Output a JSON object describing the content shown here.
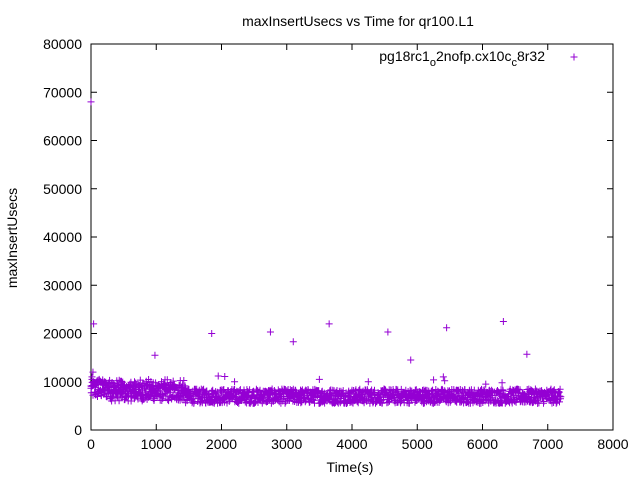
{
  "chart_data": {
    "type": "scatter",
    "title": "maxInsertUsecs vs Time for qr100.L1",
    "xlabel": "Time(s)",
    "ylabel": "maxInsertUsecs",
    "xlim": [
      0,
      8000
    ],
    "ylim": [
      0,
      80000
    ],
    "xticks": [
      "0",
      "1000",
      "2000",
      "3000",
      "4000",
      "5000",
      "6000",
      "7000",
      "8000"
    ],
    "yticks": [
      "0",
      "10000",
      "20000",
      "30000",
      "40000",
      "50000",
      "60000",
      "70000",
      "80000"
    ],
    "legend_position": "top-right",
    "marker": "+",
    "color": "#9400d3",
    "series": [
      {
        "name": "pg18rc1_o2nofp.cx10c_c8r32",
        "band": {
          "x_range": [
            0,
            7200
          ],
          "y_range": [
            5500,
            8500
          ],
          "density": "dense, one point per ~5 seconds",
          "upper_fringe_y": [
            8500,
            10500
          ],
          "upper_fringe_x_range": [
            0,
            1450
          ]
        },
        "points": [
          {
            "x": 0,
            "y": 68000
          },
          {
            "x": 30,
            "y": 12000
          },
          {
            "x": 40,
            "y": 22000
          },
          {
            "x": 15,
            "y": 11000
          },
          {
            "x": 980,
            "y": 15500
          },
          {
            "x": 1850,
            "y": 20000
          },
          {
            "x": 1950,
            "y": 11200
          },
          {
            "x": 2050,
            "y": 11100
          },
          {
            "x": 2200,
            "y": 10000
          },
          {
            "x": 2750,
            "y": 20300
          },
          {
            "x": 3100,
            "y": 18300
          },
          {
            "x": 3500,
            "y": 10500
          },
          {
            "x": 3650,
            "y": 22000
          },
          {
            "x": 4250,
            "y": 10000
          },
          {
            "x": 4550,
            "y": 20300
          },
          {
            "x": 4900,
            "y": 14500
          },
          {
            "x": 5250,
            "y": 10400
          },
          {
            "x": 5400,
            "y": 11000
          },
          {
            "x": 5420,
            "y": 10200
          },
          {
            "x": 5450,
            "y": 21200
          },
          {
            "x": 6050,
            "y": 9500
          },
          {
            "x": 6300,
            "y": 9800
          },
          {
            "x": 6320,
            "y": 22500
          },
          {
            "x": 6680,
            "y": 15700
          }
        ]
      }
    ]
  }
}
